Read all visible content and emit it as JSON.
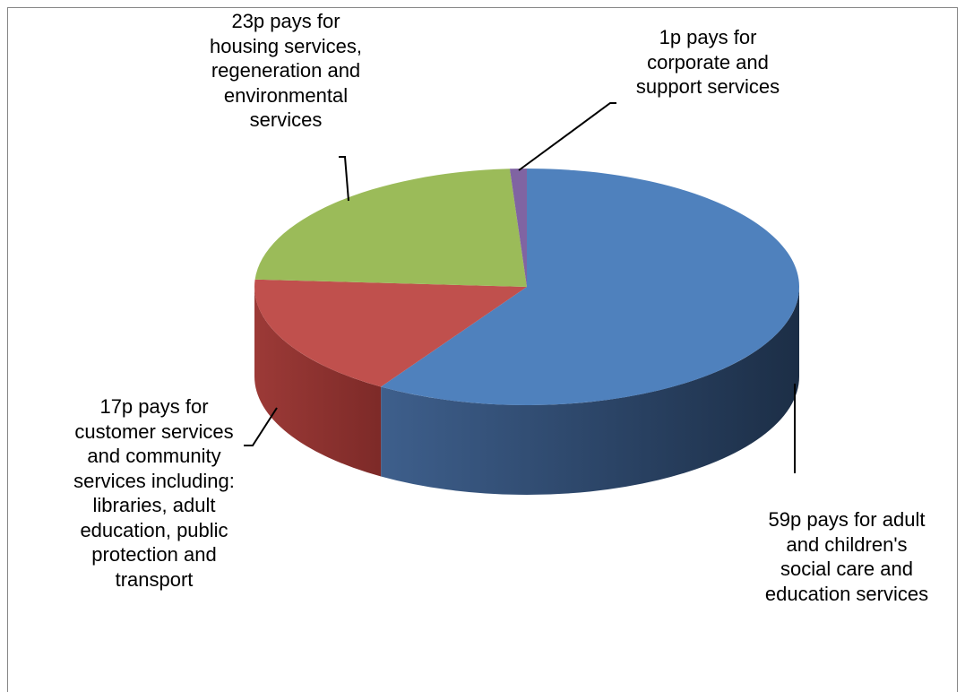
{
  "chart_data": {
    "type": "pie",
    "style": "3d",
    "categories": [
      "59p pays for adult and children's social care and education services",
      "17p pays for customer services and community services including: libraries, adult education, public protection and transport",
      "23p pays for housing services, regeneration and environmental services",
      "1p pays for corporate and support services"
    ],
    "values": [
      59,
      17,
      23,
      1
    ],
    "colors": [
      "#4F81BD",
      "#C0504D",
      "#9BBB59",
      "#8064A2"
    ],
    "legend": "none",
    "data_labels": {
      "housing": "23p pays for\nhousing services,\nregeneration and\nenvironmental\nservices",
      "corporate": "1p pays for\ncorporate and\nsupport services",
      "customer": "17p pays for\ncustomer services\nand community\nservices including:\nlibraries, adult\neducation, public\nprotection and\ntransport",
      "social_care": "59p pays for adult\nand children's\nsocial care and\neducation services"
    }
  }
}
